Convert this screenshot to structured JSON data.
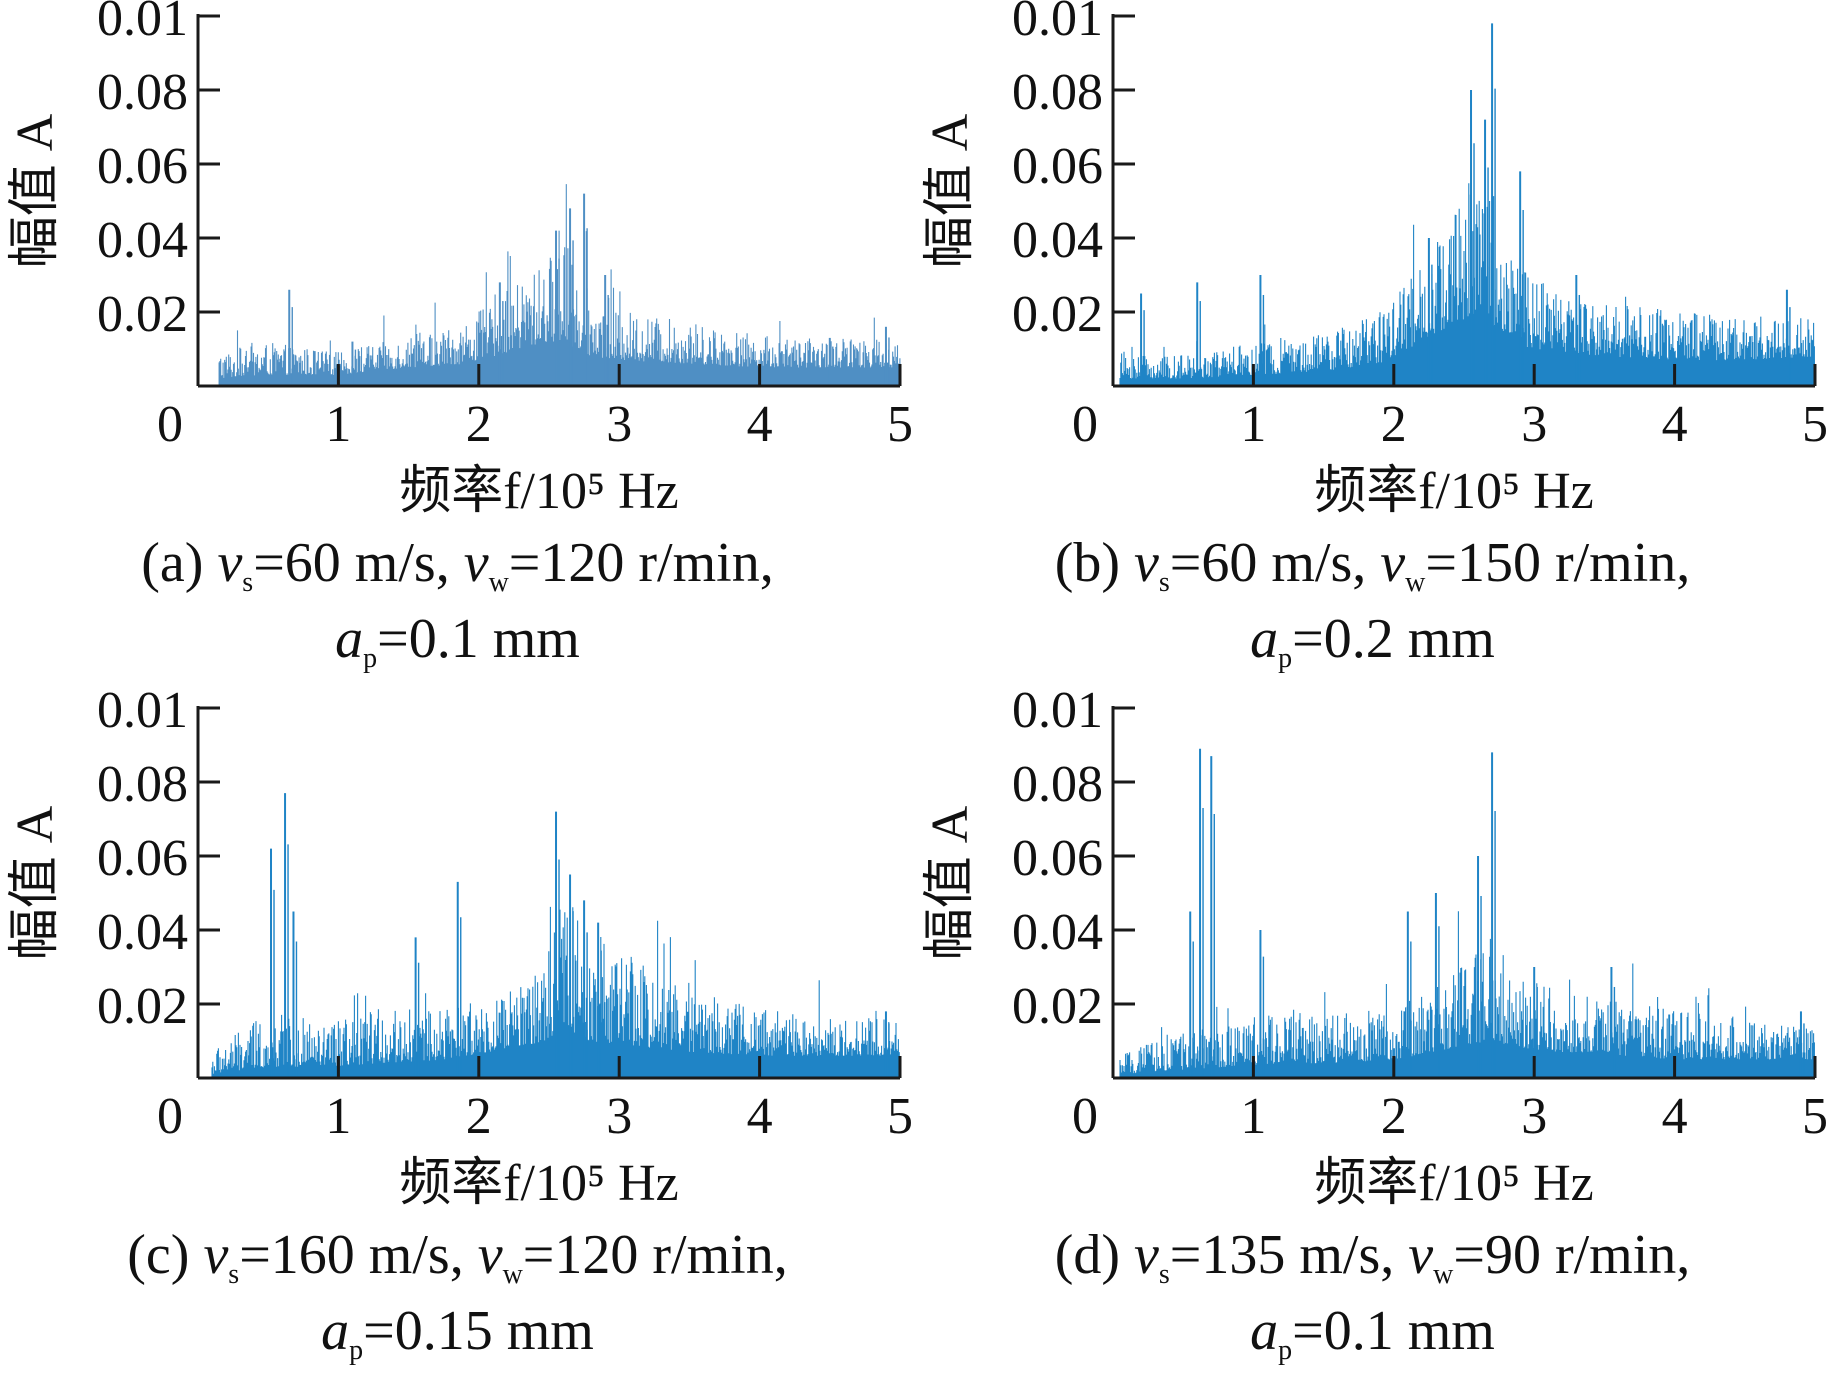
{
  "figure": {
    "axis_color": "#1a1a1a"
  },
  "chart_data": [
    {
      "type": "area",
      "panel": "a",
      "color": "#4f8fc4",
      "ylabel": "幅值 A",
      "xlabel": "频率f/10⁵ Hz",
      "xlim": [
        0,
        5
      ],
      "ylim": [
        0,
        0.1
      ],
      "x_ticks": [
        "0",
        "1",
        "2",
        "3",
        "4",
        "5"
      ],
      "y_ticks": [
        "0.02",
        "0.04",
        "0.06",
        "0.08",
        "0.01"
      ],
      "caption_label": "(a)",
      "caption_vs": "=60 m/s,",
      "caption_vw": "=120 r/min,",
      "caption_ap": "=0.1 mm",
      "envelope": {
        "x": [
          0.15,
          0.5,
          1.0,
          1.5,
          1.9,
          2.1,
          2.3,
          2.5,
          2.6,
          2.7,
          2.8,
          3.0,
          3.5,
          4.0,
          4.5,
          5.0
        ],
        "upper": [
          0.008,
          0.01,
          0.008,
          0.012,
          0.015,
          0.02,
          0.025,
          0.03,
          0.04,
          0.03,
          0.02,
          0.018,
          0.015,
          0.012,
          0.011,
          0.012
        ],
        "lower": [
          0.002,
          0.003,
          0.003,
          0.005,
          0.006,
          0.008,
          0.01,
          0.012,
          0.012,
          0.01,
          0.008,
          0.007,
          0.006,
          0.005,
          0.005,
          0.005
        ]
      },
      "peaks": [
        [
          0.65,
          0.026
        ],
        [
          1.1,
          0.012
        ],
        [
          2.15,
          0.028
        ],
        [
          2.55,
          0.042
        ],
        [
          2.65,
          0.048
        ],
        [
          2.75,
          0.052
        ],
        [
          2.9,
          0.03
        ],
        [
          4.5,
          0.013
        ],
        [
          4.9,
          0.016
        ]
      ]
    },
    {
      "type": "area",
      "panel": "b",
      "color": "#1f84c6",
      "ylabel": "幅值 A",
      "xlabel": "频率f/10⁵ Hz",
      "xlim": [
        0,
        5
      ],
      "ylim": [
        0,
        0.1
      ],
      "x_ticks": [
        "0",
        "1",
        "2",
        "3",
        "4",
        "5"
      ],
      "y_ticks": [
        "0.02",
        "0.04",
        "0.06",
        "0.08",
        "0.01"
      ],
      "caption_label": "(b)",
      "caption_vs": "=60 m/s,",
      "caption_vw": "=150 r/min,",
      "caption_ap": "=0.2 mm",
      "envelope": {
        "x": [
          0.05,
          0.5,
          1.0,
          1.5,
          1.9,
          2.1,
          2.3,
          2.5,
          2.6,
          2.7,
          2.8,
          3.0,
          3.5,
          4.0,
          4.5,
          5.0
        ],
        "upper": [
          0.008,
          0.007,
          0.01,
          0.012,
          0.018,
          0.025,
          0.035,
          0.045,
          0.06,
          0.05,
          0.035,
          0.025,
          0.02,
          0.018,
          0.016,
          0.018
        ],
        "lower": [
          0.002,
          0.002,
          0.003,
          0.004,
          0.006,
          0.01,
          0.014,
          0.018,
          0.02,
          0.016,
          0.012,
          0.01,
          0.008,
          0.007,
          0.007,
          0.008
        ]
      },
      "peaks": [
        [
          0.2,
          0.025
        ],
        [
          0.6,
          0.028
        ],
        [
          1.05,
          0.03
        ],
        [
          2.25,
          0.04
        ],
        [
          2.55,
          0.08
        ],
        [
          2.65,
          0.072
        ],
        [
          2.7,
          0.098
        ],
        [
          2.9,
          0.058
        ],
        [
          3.3,
          0.03
        ],
        [
          4.8,
          0.026
        ]
      ]
    },
    {
      "type": "area",
      "panel": "c",
      "color": "#1f84c6",
      "ylabel": "幅值 A",
      "xlabel": "频率f/10⁵ Hz",
      "xlim": [
        0,
        5
      ],
      "ylim": [
        0,
        0.1
      ],
      "x_ticks": [
        "0",
        "1",
        "2",
        "3",
        "4",
        "5"
      ],
      "y_ticks": [
        "0.02",
        "0.04",
        "0.06",
        "0.08",
        "0.01"
      ],
      "caption_label": "(c)",
      "caption_vs": "=160 m/s,",
      "caption_vw": "=120 r/min,",
      "caption_ap": "=0.15 mm",
      "envelope": {
        "x": [
          0.1,
          0.5,
          0.9,
          1.3,
          1.8,
          2.2,
          2.5,
          2.6,
          2.8,
          3.0,
          3.5,
          4.0,
          4.5,
          5.0
        ],
        "upper": [
          0.006,
          0.015,
          0.012,
          0.016,
          0.016,
          0.02,
          0.03,
          0.045,
          0.035,
          0.03,
          0.022,
          0.016,
          0.015,
          0.014
        ],
        "lower": [
          0.001,
          0.003,
          0.003,
          0.004,
          0.005,
          0.008,
          0.01,
          0.012,
          0.01,
          0.009,
          0.007,
          0.006,
          0.006,
          0.006
        ]
      },
      "peaks": [
        [
          0.52,
          0.062
        ],
        [
          0.62,
          0.077
        ],
        [
          0.68,
          0.045
        ],
        [
          1.55,
          0.038
        ],
        [
          1.85,
          0.053
        ],
        [
          2.55,
          0.072
        ],
        [
          2.65,
          0.055
        ],
        [
          2.75,
          0.048
        ],
        [
          2.85,
          0.042
        ],
        [
          4.9,
          0.018
        ]
      ]
    },
    {
      "type": "area",
      "panel": "d",
      "color": "#1f84c6",
      "ylabel": "幅值 A",
      "xlabel": "频率f/10⁵ Hz",
      "xlim": [
        0,
        5
      ],
      "ylim": [
        0,
        0.1
      ],
      "x_ticks": [
        "0",
        "1",
        "2",
        "3",
        "4",
        "5"
      ],
      "y_ticks": [
        "0.02",
        "0.04",
        "0.06",
        "0.08",
        "0.01"
      ],
      "caption_label": "(d)",
      "caption_vs": "=135 m/s,",
      "caption_vw": "=90 r/min,",
      "caption_ap": "=0.1 mm",
      "envelope": {
        "x": [
          0.05,
          0.4,
          0.8,
          1.2,
          1.6,
          2.0,
          2.3,
          2.5,
          2.7,
          2.9,
          3.2,
          3.6,
          4.0,
          4.5,
          5.0
        ],
        "upper": [
          0.005,
          0.01,
          0.012,
          0.015,
          0.015,
          0.016,
          0.022,
          0.028,
          0.035,
          0.025,
          0.02,
          0.018,
          0.016,
          0.014,
          0.012
        ],
        "lower": [
          0.001,
          0.002,
          0.003,
          0.004,
          0.004,
          0.005,
          0.007,
          0.009,
          0.01,
          0.008,
          0.007,
          0.006,
          0.005,
          0.005,
          0.005
        ]
      },
      "peaks": [
        [
          0.55,
          0.045
        ],
        [
          0.62,
          0.089
        ],
        [
          0.7,
          0.087
        ],
        [
          1.05,
          0.04
        ],
        [
          2.1,
          0.045
        ],
        [
          2.3,
          0.05
        ],
        [
          2.6,
          0.06
        ],
        [
          2.7,
          0.088
        ],
        [
          3.0,
          0.03
        ],
        [
          3.55,
          0.03
        ],
        [
          4.9,
          0.018
        ]
      ]
    }
  ]
}
